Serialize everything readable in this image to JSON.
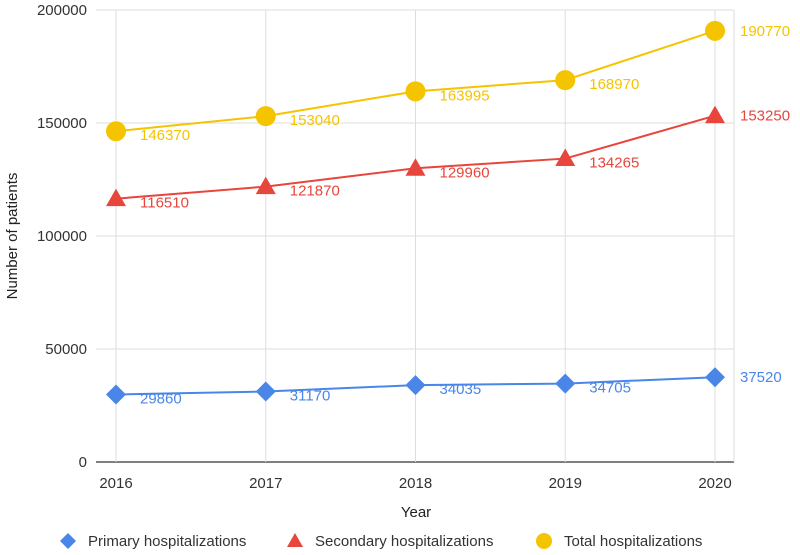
{
  "chart_data": {
    "type": "line",
    "title": "",
    "xlabel": "Year",
    "ylabel": "Number of patients",
    "categories": [
      "2016",
      "2017",
      "2018",
      "2019",
      "2020"
    ],
    "ylim": [
      0,
      200000
    ],
    "yticks": [
      "0",
      "50000",
      "100000",
      "150000",
      "200000"
    ],
    "grid": true,
    "legend_position": "bottom",
    "series": [
      {
        "name": "Primary hospitalizations",
        "marker": "diamond",
        "color": "#4a86e8",
        "values": [
          29860,
          31170,
          34035,
          34705,
          37520
        ],
        "labels": [
          "29860",
          "31170",
          "34035",
          "34705",
          "37520"
        ]
      },
      {
        "name": "Secondary hospitalizations",
        "marker": "triangle",
        "color": "#e8453c",
        "values": [
          116510,
          121870,
          129960,
          134265,
          153250
        ],
        "labels": [
          "116510",
          "121870",
          "129960",
          "134265",
          "153250"
        ]
      },
      {
        "name": "Total hospitalizations",
        "marker": "circle",
        "color": "#f5c400",
        "values": [
          146370,
          153040,
          163995,
          168970,
          190770
        ],
        "labels": [
          "146370",
          "153040",
          "163995",
          "168970",
          "190770"
        ]
      }
    ]
  }
}
